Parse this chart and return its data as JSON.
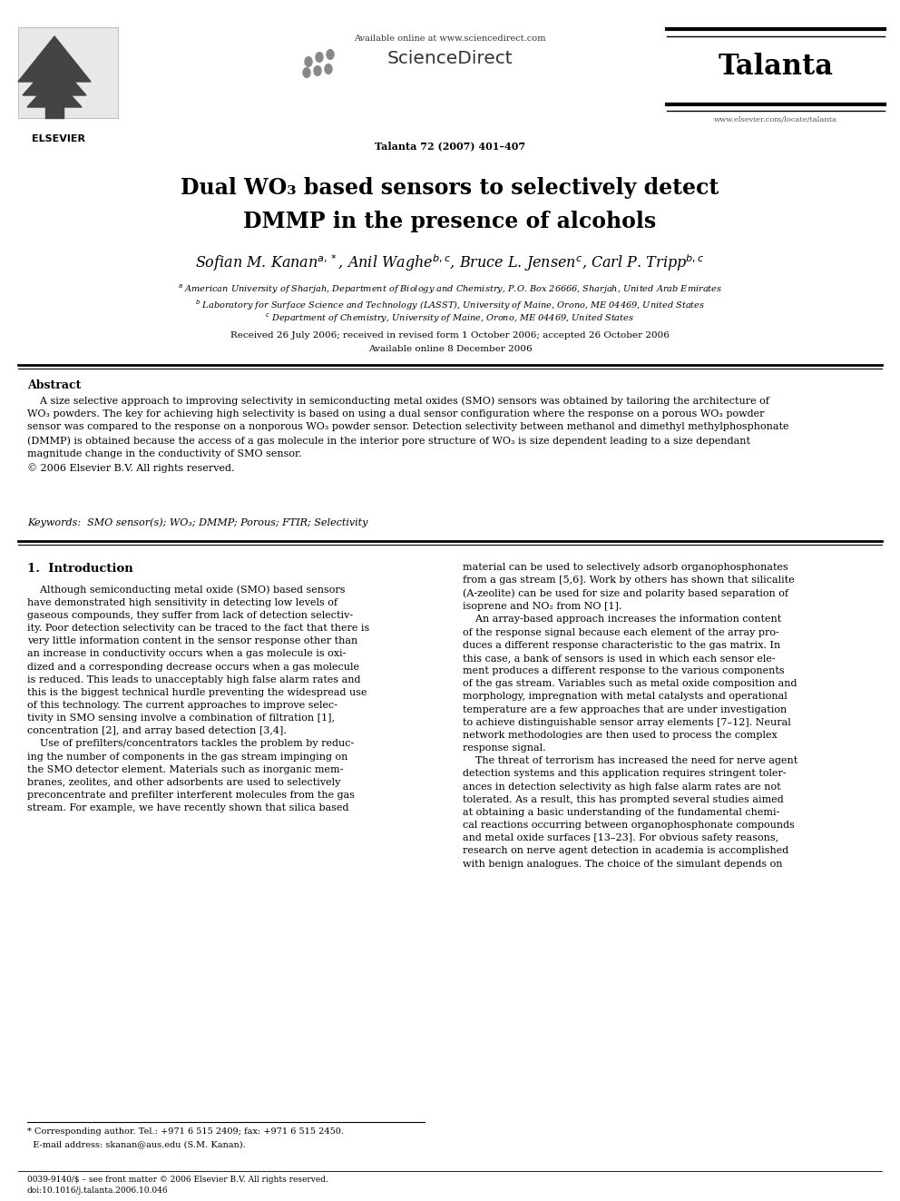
{
  "background_color": "#ffffff",
  "page_width": 9.92,
  "page_height": 13.23,
  "dpi": 100,
  "header": {
    "available_online_text": "Available online at www.sciencedirect.com",
    "sciencedirect_text": "ScienceDirect",
    "journal_name": "Talanta",
    "journal_issue": "Talanta 72 (2007) 401–407",
    "journal_url": "www.elsevier.com/locate/talanta",
    "elsevier_text": "ELSEVIER"
  },
  "title_line1": "Dual WO₃ based sensors to selectively detect",
  "title_line2": "DMMP in the presence of alcohols",
  "authors_line": "Sofian M. Kanan$^{a,*}$, Anil Waghe$^{b,c}$, Bruce L. Jensen$^{c}$, Carl P. Tripp$^{b,c}$",
  "aff1": "$^{a}$ American University of Sharjah, Department of Biology and Chemistry, P.O. Box 26666, Sharjah, United Arab Emirates",
  "aff2": "$^{b}$ Laboratory for Surface Science and Technology (LASST), University of Maine, Orono, ME 04469, United States",
  "aff3": "$^{c}$ Department of Chemistry, University of Maine, Orono, ME 04469, United States",
  "received": "Received 26 July 2006; received in revised form 1 October 2006; accepted 26 October 2006",
  "available_online": "Available online 8 December 2006",
  "abstract_title": "Abstract",
  "abstract_body": "    A size selective approach to improving selectivity in semiconducting metal oxides (SMO) sensors was obtained by tailoring the architecture of\nWO₃ powders. The key for achieving high selectivity is based on using a dual sensor configuration where the response on a porous WO₃ powder\nsensor was compared to the response on a nonporous WO₃ powder sensor. Detection selectivity between methanol and dimethyl methylphosphonate\n(DMMP) is obtained because the access of a gas molecule in the interior pore structure of WO₃ is size dependent leading to a size dependant\nmagnitude change in the conductivity of SMO sensor.\n© 2006 Elsevier B.V. All rights reserved.",
  "keywords_line": "Keywords:  SMO sensor(s); WO₃; DMMP; Porous; FTIR; Selectivity",
  "intro_title": "1.  Introduction",
  "left_col": "    Although semiconducting metal oxide (SMO) based sensors\nhave demonstrated high sensitivity in detecting low levels of\ngaseous compounds, they suffer from lack of detection selectiv-\nity. Poor detection selectivity can be traced to the fact that there is\nvery little information content in the sensor response other than\nan increase in conductivity occurs when a gas molecule is oxi-\ndized and a corresponding decrease occurs when a gas molecule\nis reduced. This leads to unacceptably high false alarm rates and\nthis is the biggest technical hurdle preventing the widespread use\nof this technology. The current approaches to improve selec-\ntivity in SMO sensing involve a combination of filtration [1],\nconcentration [2], and array based detection [3,4].\n    Use of prefilters/concentrators tackles the problem by reduc-\ning the number of components in the gas stream impinging on\nthe SMO detector element. Materials such as inorganic mem-\nbranes, zeolites, and other adsorbents are used to selectively\npreconcentrate and prefilter interferent molecules from the gas\nstream. For example, we have recently shown that silica based",
  "right_col": "material can be used to selectively adsorb organophosphonates\nfrom a gas stream [5,6]. Work by others has shown that silicalite\n(A-zeolite) can be used for size and polarity based separation of\nisoprene and NO₂ from NO [1].\n    An array-based approach increases the information content\nof the response signal because each element of the array pro-\nduces a different response characteristic to the gas matrix. In\nthis case, a bank of sensors is used in which each sensor ele-\nment produces a different response to the various components\nof the gas stream. Variables such as metal oxide composition and\nmorphology, impregnation with metal catalysts and operational\ntemperature are a few approaches that are under investigation\nto achieve distinguishable sensor array elements [7–12]. Neural\nnetwork methodologies are then used to process the complex\nresponse signal.\n    The threat of terrorism has increased the need for nerve agent\ndetection systems and this application requires stringent toler-\nances in detection selectivity as high false alarm rates are not\ntolerated. As a result, this has prompted several studies aimed\nat obtaining a basic understanding of the fundamental chemi-\ncal reactions occurring between organophosphonate compounds\nand metal oxide surfaces [13–23]. For obvious safety reasons,\nresearch on nerve agent detection in academia is accomplished\nwith benign analogues. The choice of the simulant depends on",
  "footnote_line1": "* Corresponding author. Tel.: +971 6 515 2409; fax: +971 6 515 2450.",
  "footnote_line2": "  E-mail address: skanan@aus.edu (S.M. Kanan).",
  "footer": "0039-9140/$ – see front matter © 2006 Elsevier B.V. All rights reserved.\ndoi:10.1016/j.talanta.2006.10.046"
}
